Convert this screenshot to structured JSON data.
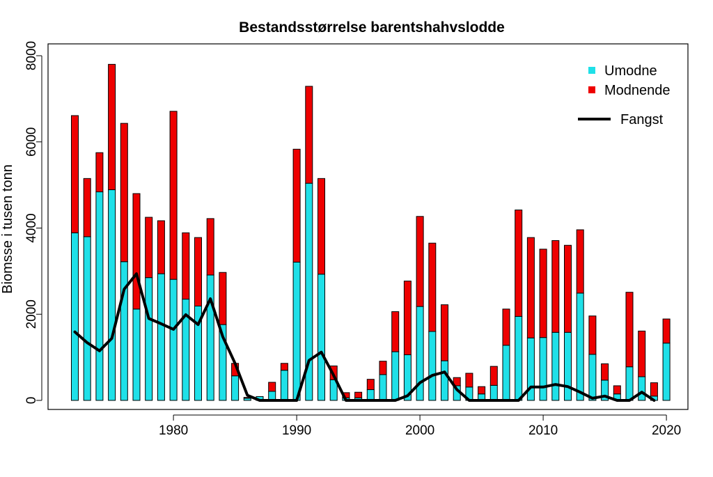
{
  "chart_data": {
    "type": "bar",
    "title": "Bestandsstørrelse barentshahvslodde",
    "xlabel": "",
    "ylabel": "Biomsse i tusen tonn",
    "xlim": [
      1971,
      2021
    ],
    "ylim": [
      0,
      8000
    ],
    "x_ticks": [
      "1980",
      "1990",
      "2000",
      "2010",
      "2020"
    ],
    "y_ticks": [
      "0",
      "2000",
      "4000",
      "6000",
      "8000"
    ],
    "legend_position": "top-right",
    "grid": false,
    "colors": {
      "immature": "#1fe0e8",
      "mature": "#ee0000",
      "catch": "#000000",
      "bar_edge": "#000000"
    },
    "legend": {
      "immature": "Umodne",
      "mature": "Modnende",
      "catch": "Fangst"
    },
    "years": [
      1972,
      1973,
      1974,
      1975,
      1976,
      1977,
      1978,
      1979,
      1980,
      1981,
      1982,
      1983,
      1984,
      1985,
      1986,
      1987,
      1988,
      1989,
      1990,
      1991,
      1992,
      1993,
      1994,
      1995,
      1996,
      1997,
      1998,
      1999,
      2000,
      2001,
      2002,
      2003,
      2004,
      2005,
      2006,
      2007,
      2008,
      2009,
      2010,
      2011,
      2012,
      2013,
      2014,
      2015,
      2016,
      2017,
      2018,
      2019,
      2020
    ],
    "series": [
      {
        "name": "Umodne",
        "values": [
          3890,
          3800,
          4840,
          4890,
          3220,
          2120,
          2850,
          2940,
          2810,
          2350,
          2190,
          2910,
          1760,
          570,
          50,
          90,
          210,
          700,
          3210,
          5040,
          2930,
          480,
          60,
          60,
          250,
          600,
          1130,
          1060,
          2180,
          1600,
          920,
          340,
          310,
          150,
          350,
          1280,
          1950,
          1450,
          1460,
          1580,
          1580,
          2490,
          1070,
          470,
          150,
          780,
          550,
          100,
          1330
        ]
      },
      {
        "name": "Modnende",
        "values": [
          2720,
          1350,
          910,
          2910,
          3210,
          2680,
          1400,
          1230,
          3900,
          1540,
          1590,
          1310,
          1210,
          290,
          20,
          0,
          210,
          160,
          2620,
          2250,
          2220,
          320,
          120,
          130,
          240,
          310,
          930,
          1710,
          2090,
          2050,
          1300,
          190,
          320,
          170,
          440,
          840,
          2470,
          2330,
          2050,
          2130,
          2020,
          1470,
          890,
          380,
          190,
          1730,
          1060,
          310,
          560
        ]
      },
      {
        "name": "Fangst",
        "values": [
          1590,
          1340,
          1150,
          1440,
          2580,
          2940,
          1900,
          1780,
          1650,
          1990,
          1760,
          2360,
          1480,
          860,
          120,
          0,
          0,
          0,
          0,
          930,
          1120,
          580,
          0,
          0,
          0,
          0,
          0,
          110,
          410,
          580,
          660,
          250,
          0,
          0,
          0,
          0,
          0,
          310,
          310,
          370,
          320,
          190,
          50,
          100,
          0,
          0,
          190,
          0,
          null
        ]
      }
    ]
  }
}
